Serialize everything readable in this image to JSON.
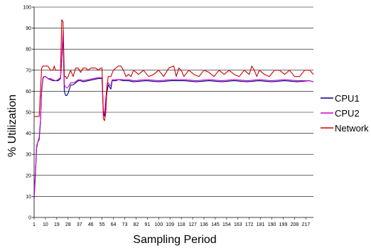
{
  "chart_data": {
    "type": "line",
    "title": "",
    "xlabel": "Sampling Period",
    "ylabel": "% Utilization",
    "xlim": [
      1,
      223
    ],
    "ylim": [
      0,
      100
    ],
    "y_ticks": [
      0,
      10,
      20,
      30,
      40,
      50,
      60,
      70,
      80,
      90,
      100
    ],
    "x_ticks": [
      1,
      10,
      19,
      28,
      37,
      46,
      55,
      64,
      73,
      82,
      91,
      100,
      109,
      118,
      127,
      136,
      145,
      154,
      163,
      172,
      181,
      190,
      199,
      208,
      217
    ],
    "grid": "horizontal",
    "legend_position": "right",
    "series": [
      {
        "name": "CPU1",
        "color": "#000080",
        "x": [
          1,
          2,
          3,
          4,
          5,
          6,
          7,
          8,
          9,
          10,
          11,
          12,
          14,
          16,
          18,
          20,
          22,
          23,
          24,
          25,
          26,
          27,
          28,
          30,
          32,
          34,
          36,
          38,
          40,
          44,
          48,
          52,
          54,
          55,
          56,
          57,
          58,
          59,
          60,
          61,
          62,
          63,
          64,
          66,
          68,
          72,
          76,
          80,
          90,
          100,
          110,
          120,
          130,
          140,
          150,
          160,
          170,
          180,
          190,
          200,
          210,
          220,
          223
        ],
        "values": [
          9,
          20,
          33,
          36,
          37,
          45,
          60,
          66,
          67,
          67,
          66.5,
          66,
          65.5,
          65,
          65,
          65,
          66,
          75,
          87,
          60,
          58,
          58,
          59,
          63,
          63,
          64,
          65,
          65,
          64.5,
          65,
          65.5,
          66,
          66,
          66,
          50,
          48,
          55,
          60,
          63,
          62,
          61,
          65,
          65,
          65,
          65.5,
          65,
          65,
          64.5,
          65,
          64.5,
          65,
          65,
          64.5,
          65,
          64.5,
          65,
          64.5,
          65,
          64.5,
          65,
          64.5,
          65,
          64.5
        ]
      },
      {
        "name": "CPU2",
        "color": "#cc00cc",
        "x": [
          1,
          2,
          3,
          4,
          5,
          6,
          7,
          8,
          9,
          10,
          11,
          12,
          14,
          16,
          18,
          20,
          22,
          23,
          24,
          25,
          26,
          27,
          28,
          30,
          32,
          34,
          36,
          38,
          40,
          44,
          48,
          52,
          54,
          55,
          56,
          57,
          58,
          59,
          60,
          61,
          62,
          63,
          64,
          66,
          68,
          72,
          76,
          80,
          90,
          100,
          110,
          120,
          130,
          140,
          150,
          160,
          170,
          180,
          190,
          200,
          210,
          220,
          223
        ],
        "values": [
          10,
          21,
          34,
          36,
          38,
          46,
          61,
          66.5,
          67,
          67,
          66.5,
          66,
          66,
          65.5,
          65,
          65.5,
          66.5,
          76,
          89,
          63,
          62,
          61.5,
          62,
          64,
          64,
          64.5,
          65.5,
          65.5,
          65,
          65.5,
          66,
          66.5,
          66.5,
          66.5,
          51,
          49,
          57,
          63,
          64,
          63,
          62.5,
          65.5,
          65.5,
          65.5,
          65.5,
          65.5,
          65.5,
          65,
          65.5,
          65,
          65.5,
          65.5,
          65,
          65.5,
          65,
          65.5,
          65,
          65.5,
          65,
          65.5,
          65,
          65,
          64.5
        ]
      },
      {
        "name": "Network",
        "color": "#cc0000",
        "x": [
          1,
          3,
          5,
          6,
          7,
          8,
          9,
          12,
          14,
          16,
          17,
          18,
          20,
          22,
          23,
          24,
          25,
          26,
          27,
          28,
          30,
          32,
          34,
          36,
          38,
          40,
          42,
          44,
          46,
          48,
          50,
          52,
          54,
          55,
          56,
          57,
          58,
          59,
          60,
          62,
          64,
          66,
          68,
          70,
          72,
          74,
          76,
          78,
          80,
          84,
          88,
          92,
          96,
          100,
          104,
          108,
          112,
          114,
          116,
          118,
          120,
          124,
          128,
          132,
          136,
          140,
          144,
          148,
          152,
          156,
          160,
          164,
          168,
          172,
          174,
          176,
          178,
          180,
          184,
          188,
          192,
          196,
          200,
          204,
          208,
          212,
          216,
          220,
          223
        ],
        "values": [
          48,
          48,
          48,
          60,
          71,
          72,
          72,
          72,
          70,
          70,
          72,
          70,
          70,
          70,
          94,
          93,
          67,
          67,
          66,
          67,
          70,
          67,
          71,
          71,
          69,
          71,
          71,
          70,
          71,
          71,
          71,
          70,
          71,
          71,
          47,
          46,
          50,
          63,
          67,
          67,
          70,
          71,
          72,
          72,
          70,
          67,
          68,
          67,
          70,
          68,
          70,
          67,
          68,
          70,
          67,
          71,
          72,
          67,
          71,
          70,
          67,
          70,
          68,
          67,
          70,
          69,
          67,
          70,
          68,
          70,
          68,
          67,
          70,
          68,
          72,
          70,
          67,
          70,
          68,
          67,
          70,
          70,
          68,
          70,
          67,
          67,
          70,
          70,
          68
        ]
      }
    ]
  }
}
